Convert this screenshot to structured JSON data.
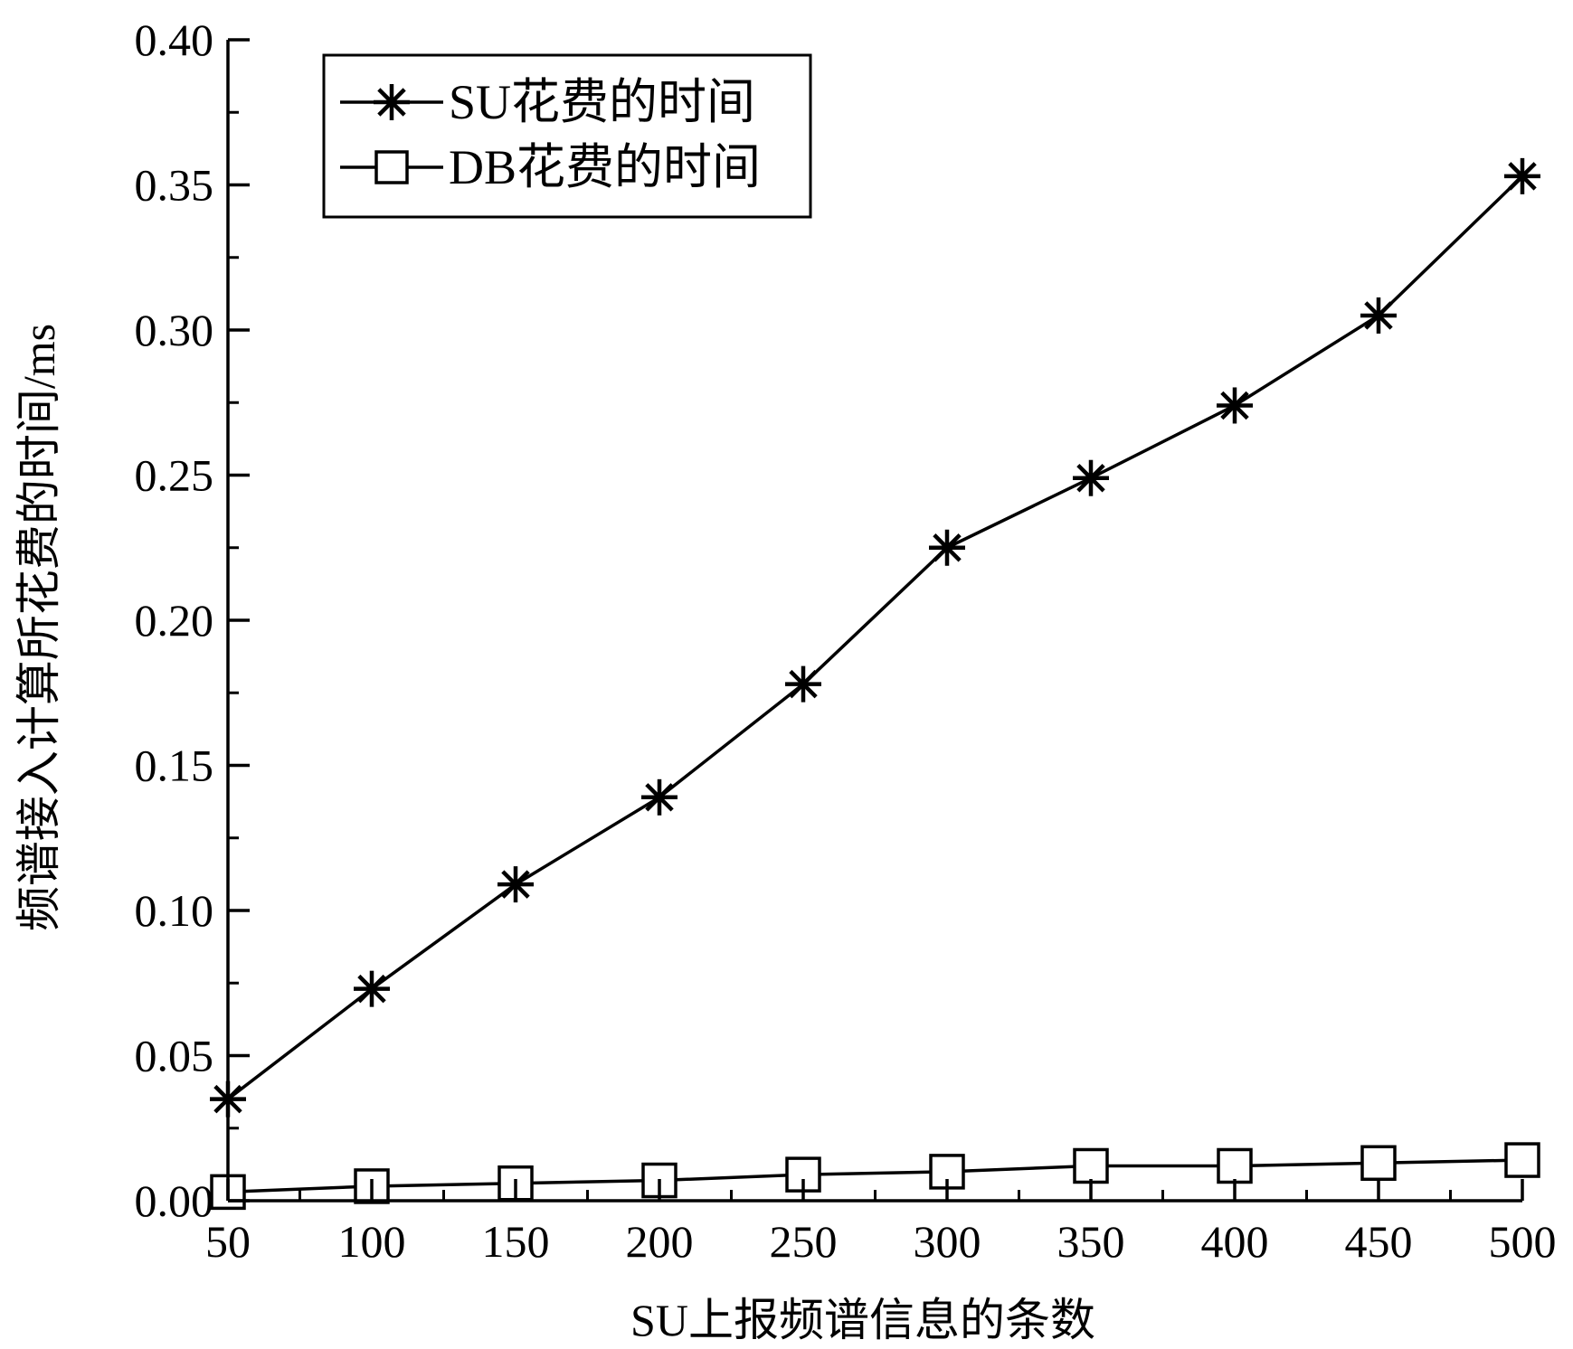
{
  "chart_data": {
    "type": "line",
    "title": "",
    "xlabel": "SU上报频谱信息的条数",
    "ylabel": "频谱接入计算所花费的时间/ms",
    "x": [
      50,
      100,
      150,
      200,
      250,
      300,
      350,
      400,
      450,
      500
    ],
    "xlim": [
      50,
      500
    ],
    "ylim": [
      0.0,
      0.4
    ],
    "xticks": [
      "50",
      "100",
      "150",
      "200",
      "250",
      "300",
      "350",
      "400",
      "450",
      "500"
    ],
    "yticks": [
      "0.00",
      "0.05",
      "0.10",
      "0.15",
      "0.20",
      "0.25",
      "0.30",
      "0.35",
      "0.40"
    ],
    "grid": false,
    "legend_position": "top-left",
    "series": [
      {
        "name": "SU花费的时间",
        "marker": "asterisk",
        "color": "#000000",
        "values": [
          0.035,
          0.073,
          0.109,
          0.139,
          0.178,
          0.225,
          0.249,
          0.274,
          0.305,
          0.353
        ]
      },
      {
        "name": "DB花费的时间",
        "marker": "square",
        "color": "#000000",
        "values": [
          0.003,
          0.005,
          0.006,
          0.007,
          0.009,
          0.01,
          0.012,
          0.012,
          0.013,
          0.014
        ]
      }
    ]
  }
}
